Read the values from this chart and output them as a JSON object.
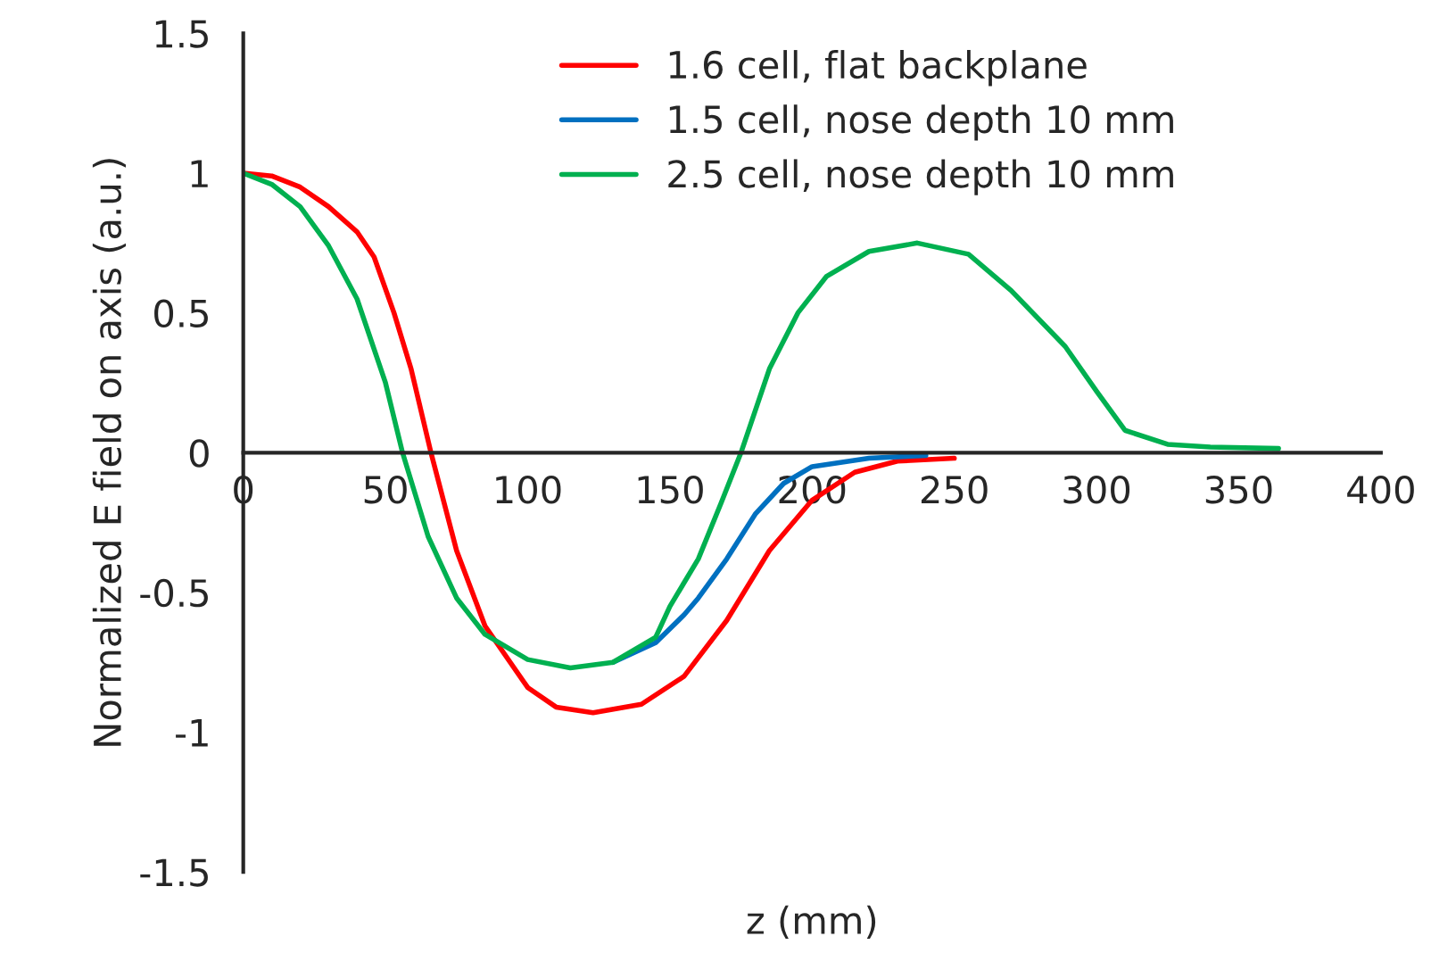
{
  "chart_data": {
    "type": "line",
    "xlabel": "z (mm)",
    "ylabel": "Normalized E field on axis (a.u.)",
    "xlim": [
      0,
      400
    ],
    "xticks": [
      0,
      50,
      100,
      150,
      200,
      250,
      300,
      350,
      400
    ],
    "ylim": [
      -1.5,
      1.5
    ],
    "yticks": [
      -1.5,
      -1,
      -0.5,
      0,
      0.5,
      1,
      1.5
    ],
    "grid": false,
    "legend": "top",
    "marker": "none",
    "line_style": "solid",
    "series": [
      {
        "name": "1.6 cell, flat backplane",
        "color": "#ff0000",
        "x": [
          0,
          10,
          20,
          30,
          40,
          46,
          53,
          59,
          66,
          75,
          85,
          100,
          110,
          123,
          140,
          155,
          170,
          185,
          200,
          215,
          230,
          250
        ],
        "values": [
          1,
          0.99,
          0.95,
          0.88,
          0.79,
          0.7,
          0.5,
          0.3,
          0,
          -0.35,
          -0.62,
          -0.84,
          -0.91,
          -0.93,
          -0.9,
          -0.8,
          -0.6,
          -0.35,
          -0.17,
          -0.07,
          -0.03,
          -0.02
        ]
      },
      {
        "name": "1.5 cell, nose depth 10 mm",
        "color": "#0070c0",
        "x": [
          130,
          145,
          155,
          160,
          170,
          180,
          190,
          200,
          220,
          240
        ],
        "values": [
          -0.75,
          -0.68,
          -0.58,
          -0.52,
          -0.38,
          -0.22,
          -0.11,
          -0.05,
          -0.02,
          -0.01
        ]
      },
      {
        "name": "2.5 cell, nose depth 10 mm",
        "color": "#00b050",
        "x": [
          0,
          10,
          20,
          30,
          40,
          50,
          56,
          65,
          75,
          85,
          100,
          115,
          130,
          145,
          150,
          160,
          168,
          175,
          185,
          195,
          205,
          220,
          237,
          255,
          270,
          289,
          300,
          310,
          325,
          340,
          364
        ],
        "values": [
          1,
          0.96,
          0.88,
          0.74,
          0.55,
          0.25,
          0,
          -0.3,
          -0.52,
          -0.65,
          -0.74,
          -0.77,
          -0.75,
          -0.66,
          -0.55,
          -0.38,
          -0.18,
          0,
          0.3,
          0.5,
          0.63,
          0.72,
          0.75,
          0.71,
          0.58,
          0.38,
          0.22,
          0.08,
          0.03,
          0.02,
          0.015
        ]
      }
    ]
  }
}
